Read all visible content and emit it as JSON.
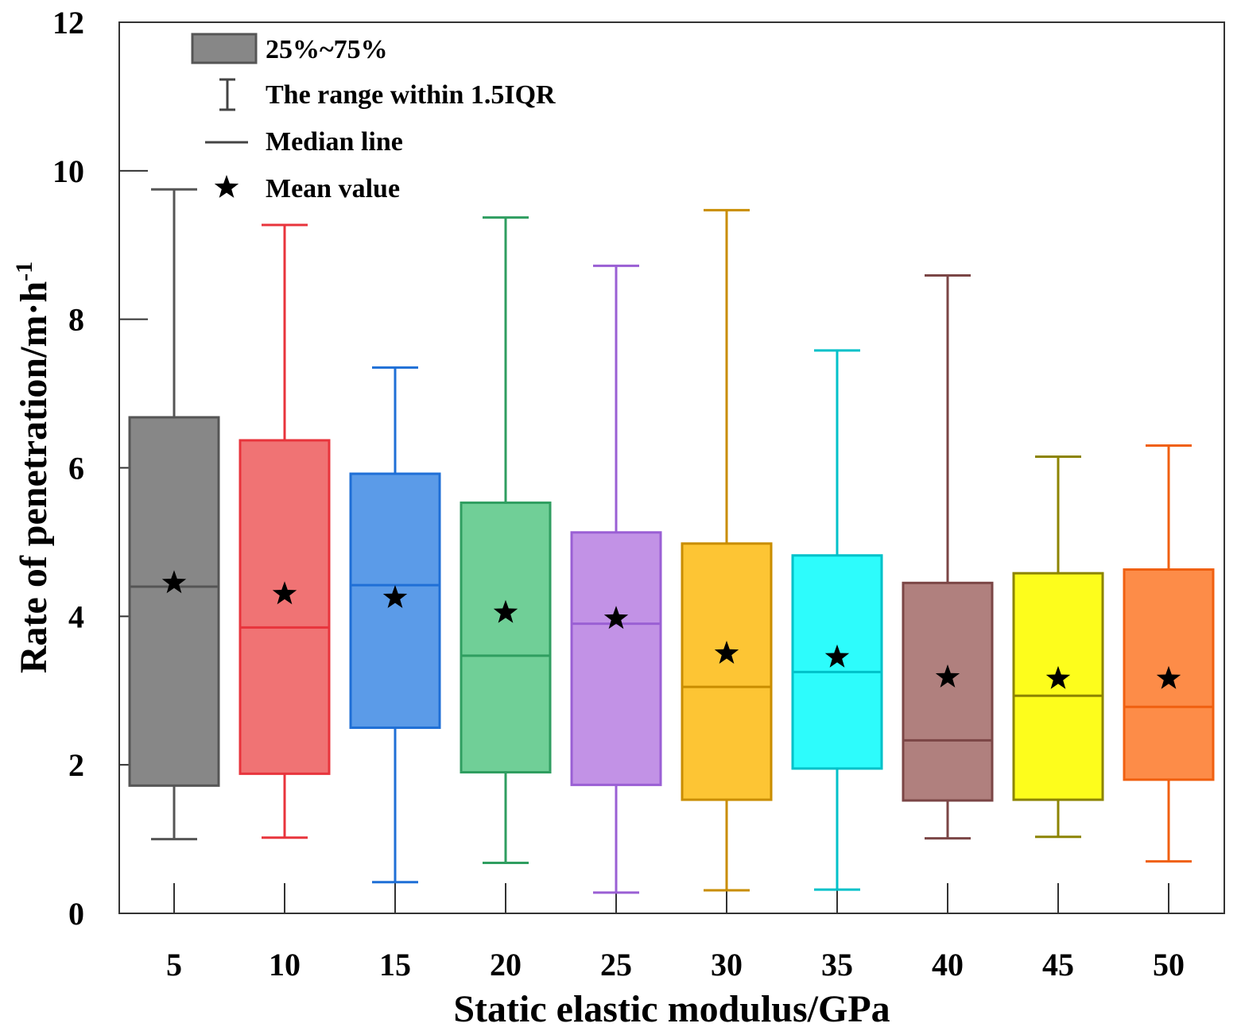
{
  "chart_data": {
    "type": "box",
    "xlabel": "Static elastic modulus/GPa",
    "ylabel_main": "Rate of penetration/m·h",
    "ylabel_sup": "-1",
    "ylim": [
      0,
      12
    ],
    "yticks": [
      0,
      2,
      4,
      6,
      8,
      10,
      12
    ],
    "categories": [
      "5",
      "10",
      "15",
      "20",
      "25",
      "30",
      "35",
      "40",
      "45",
      "50"
    ],
    "boxes": [
      {
        "category": "5",
        "whisker_low": 1.0,
        "q1": 1.72,
        "median": 4.4,
        "q3": 6.68,
        "whisker_high": 9.75,
        "mean": 4.45,
        "stroke": "#555555",
        "fill": "#878787"
      },
      {
        "category": "10",
        "whisker_low": 1.02,
        "q1": 1.88,
        "median": 3.85,
        "q3": 6.37,
        "whisker_high": 9.27,
        "mean": 4.3,
        "stroke": "#e8343c",
        "fill": "#f07374"
      },
      {
        "category": "15",
        "whisker_low": 0.42,
        "q1": 2.5,
        "median": 4.42,
        "q3": 5.92,
        "whisker_high": 7.35,
        "mean": 4.25,
        "stroke": "#1f6fd6",
        "fill": "#5b9be8"
      },
      {
        "category": "20",
        "whisker_low": 0.68,
        "q1": 1.9,
        "median": 3.47,
        "q3": 5.53,
        "whisker_high": 9.37,
        "mean": 4.05,
        "stroke": "#2f9e60",
        "fill": "#70cf97"
      },
      {
        "category": "25",
        "whisker_low": 0.28,
        "q1": 1.73,
        "median": 3.9,
        "q3": 5.13,
        "whisker_high": 8.72,
        "mean": 3.97,
        "stroke": "#9a5fd4",
        "fill": "#c292e6"
      },
      {
        "category": "30",
        "whisker_low": 0.31,
        "q1": 1.53,
        "median": 3.05,
        "q3": 4.98,
        "whisker_high": 9.47,
        "mean": 3.5,
        "stroke": "#c98d00",
        "fill": "#fdc534"
      },
      {
        "category": "35",
        "whisker_low": 0.32,
        "q1": 1.95,
        "median": 3.25,
        "q3": 4.82,
        "whisker_high": 7.58,
        "mean": 3.45,
        "stroke": "#00c1c9",
        "fill": "#2dfcfc"
      },
      {
        "category": "40",
        "whisker_low": 1.01,
        "q1": 1.52,
        "median": 2.33,
        "q3": 4.45,
        "whisker_high": 8.59,
        "mean": 3.18,
        "stroke": "#7b4646",
        "fill": "#b0807e"
      },
      {
        "category": "45",
        "whisker_low": 1.03,
        "q1": 1.53,
        "median": 2.93,
        "q3": 4.58,
        "whisker_high": 6.15,
        "mean": 3.16,
        "stroke": "#8c8400",
        "fill": "#fdfd1c"
      },
      {
        "category": "50",
        "whisker_low": 0.7,
        "q1": 1.8,
        "median": 2.78,
        "q3": 4.63,
        "whisker_high": 6.3,
        "mean": 3.16,
        "stroke": "#f06010",
        "fill": "#fd8c48"
      }
    ],
    "legend": {
      "position": "top-left",
      "box_label": "25%~75%",
      "range_label": "The range within 1.5IQR",
      "median_label": "Median line",
      "mean_label": "Mean value",
      "box_fill": "#878787",
      "box_stroke": "#555555"
    }
  }
}
